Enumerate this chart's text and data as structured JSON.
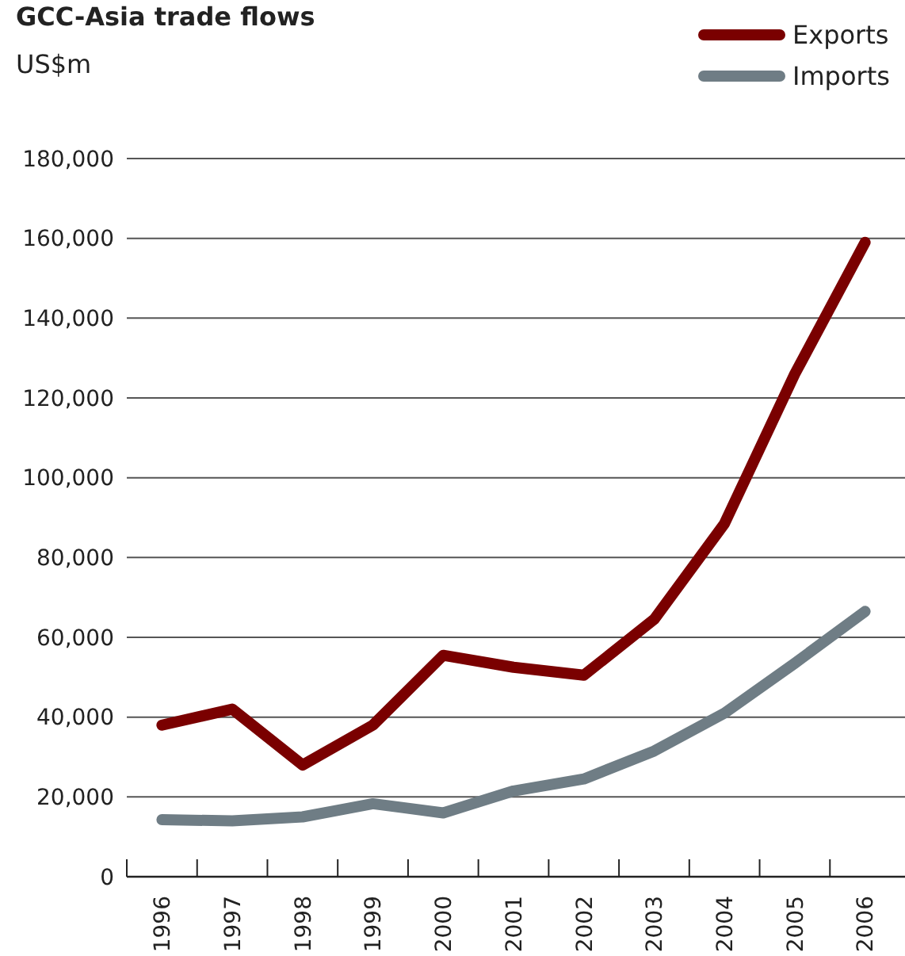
{
  "chart_data": {
    "type": "line",
    "title": "GCC-Asia trade flows",
    "ylabel": "US$m",
    "categories": [
      "1996",
      "1997",
      "1998",
      "1999",
      "2000",
      "2001",
      "2002",
      "2003",
      "2004",
      "2005",
      "2006"
    ],
    "series": [
      {
        "name": "Exports",
        "color": "#7a0000",
        "values": [
          38000,
          42000,
          28000,
          38000,
          55500,
          52500,
          50500,
          64500,
          88500,
          126000,
          159000
        ]
      },
      {
        "name": "Imports",
        "color": "#6f7d85",
        "values": [
          14300,
          14000,
          15000,
          18300,
          16000,
          21500,
          24500,
          31500,
          41000,
          53500,
          66500
        ]
      }
    ],
    "ylim": [
      0,
      180000
    ],
    "yticks": [
      {
        "value": 0,
        "label": "0"
      },
      {
        "value": 20000,
        "label": "20,000"
      },
      {
        "value": 40000,
        "label": "40,000"
      },
      {
        "value": 60000,
        "label": "60,000"
      },
      {
        "value": 80000,
        "label": "80,000"
      },
      {
        "value": 100000,
        "label": "100,000"
      },
      {
        "value": 120000,
        "label": "120,000"
      },
      {
        "value": 140000,
        "label": "140,000"
      },
      {
        "value": 160000,
        "label": "160,000"
      },
      {
        "value": 180000,
        "label": "180,000"
      }
    ],
    "grid": "y",
    "legend": "top right",
    "marker": "none",
    "line_style": "solid"
  }
}
